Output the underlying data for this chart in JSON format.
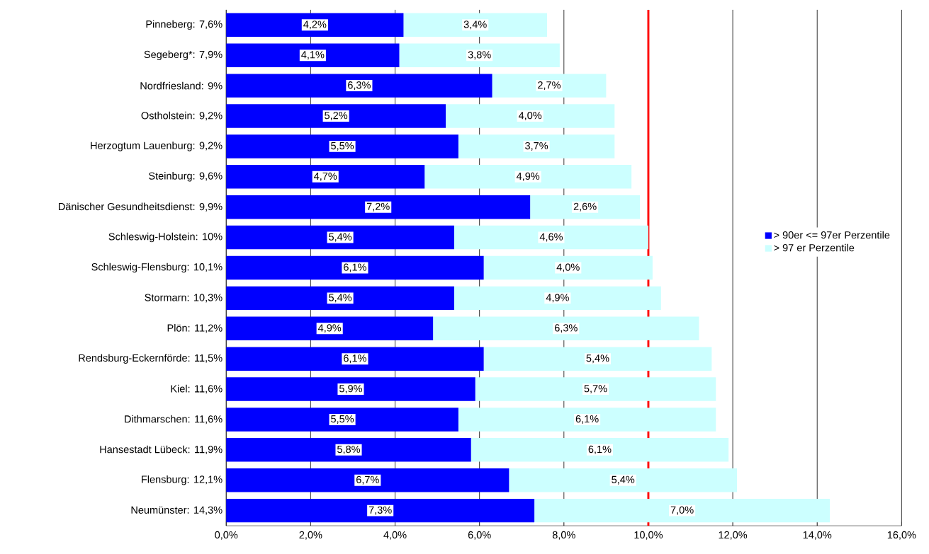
{
  "chart_data": {
    "type": "bar",
    "orientation": "horizontal",
    "stacked": true,
    "categories": [
      "Pinneberg: 7,6%",
      "Segeberg*: 7,9%",
      "Nordfriesland: 9%",
      "Ostholstein: 9,2%",
      "Herzogtum Lauenburg: 9,2%",
      "Steinburg: 9,6%",
      "Dänischer Gesundheitsdienst: 9,9%",
      "Schleswig-Holstein: 10%",
      "Schleswig-Flensburg: 10,1%",
      "Stormarn: 10,3%",
      "Plön: 11,2%",
      "Rendsburg-Eckernförde: 11,5%",
      "Kiel: 11,6%",
      "Dithmarschen: 11,6%",
      "Hansestadt Lübeck: 11,9%",
      "Flensburg: 12,1%",
      "Neumünster: 14,3%"
    ],
    "series": [
      {
        "name": "> 90er <= 97er Perzentile",
        "color": "#0000ff",
        "values": [
          4.2,
          4.1,
          6.3,
          5.2,
          5.5,
          4.7,
          7.2,
          5.4,
          6.1,
          5.4,
          4.9,
          6.1,
          5.9,
          5.5,
          5.8,
          6.7,
          7.3
        ],
        "value_labels": [
          "4,2%",
          "4,1%",
          "6,3%",
          "5,2%",
          "5,5%",
          "4,7%",
          "7,2%",
          "5,4%",
          "6,1%",
          "5,4%",
          "4,9%",
          "6,1%",
          "5,9%",
          "5,5%",
          "5,8%",
          "6,7%",
          "7,3%"
        ]
      },
      {
        "name": "> 97 er Perzentile",
        "color": "#ccffff",
        "values": [
          3.4,
          3.8,
          2.7,
          4.0,
          3.7,
          4.9,
          2.6,
          4.6,
          4.0,
          4.9,
          6.3,
          5.4,
          5.7,
          6.1,
          6.1,
          5.4,
          7.0
        ],
        "value_labels": [
          "3,4%",
          "3,8%",
          "2,7%",
          "4,0%",
          "3,7%",
          "4,9%",
          "2,6%",
          "4,6%",
          "4,0%",
          "4,9%",
          "6,3%",
          "5,4%",
          "5,7%",
          "6,1%",
          "6,1%",
          "5,4%",
          "7,0%"
        ]
      }
    ],
    "xlim": [
      0,
      16
    ],
    "xticks": [
      {
        "value": 0,
        "label": "0,0%"
      },
      {
        "value": 2,
        "label": "2,0%"
      },
      {
        "value": 4,
        "label": "4,0%"
      },
      {
        "value": 6,
        "label": "6,0%"
      },
      {
        "value": 8,
        "label": "8,0%"
      },
      {
        "value": 10,
        "label": "10,0%"
      },
      {
        "value": 12,
        "label": "12,0%"
      },
      {
        "value": 14,
        "label": "14,0%"
      },
      {
        "value": 16,
        "label": "16,0%"
      }
    ],
    "ref_lines": [
      {
        "axis": "x",
        "value": 10,
        "color": "#ff0000"
      }
    ],
    "grid": "x",
    "legend": "right"
  }
}
